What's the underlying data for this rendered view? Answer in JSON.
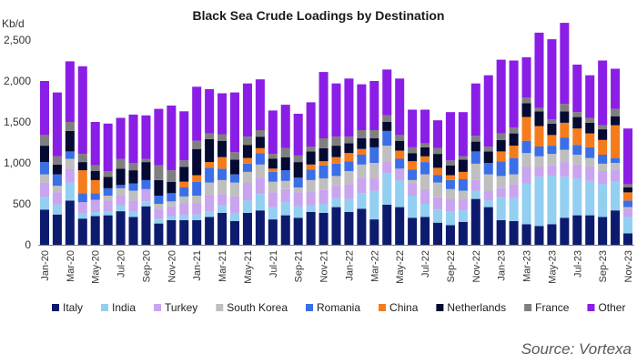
{
  "chart_data": {
    "type": "bar",
    "stacked": true,
    "title": "Black Sea Crude Loadings by Destination",
    "unit_label": "Kb/d",
    "ylim": [
      0,
      2500
    ],
    "yticks": [
      "0",
      "500",
      "1,000",
      "1,500",
      "2,000",
      "2,500"
    ],
    "ytick_values": [
      0,
      500,
      1000,
      1500,
      2000,
      2500
    ],
    "categories": [
      "Jan-20",
      "Feb-20",
      "Mar-20",
      "Apr-20",
      "May-20",
      "Jun-20",
      "Jul-20",
      "Aug-20",
      "Sep-20",
      "Oct-20",
      "Nov-20",
      "Dec-20",
      "Jan-21",
      "Feb-21",
      "Mar-21",
      "Apr-21",
      "May-21",
      "Jun-21",
      "Jul-21",
      "Aug-21",
      "Sep-21",
      "Oct-21",
      "Nov-21",
      "Dec-21",
      "Jan-22",
      "Feb-22",
      "Mar-22",
      "Apr-22",
      "May-22",
      "Jun-22",
      "Jul-22",
      "Aug-22",
      "Sep-22",
      "Oct-22",
      "Nov-22",
      "Dec-22",
      "Jan-23",
      "Feb-23",
      "Mar-23",
      "Apr-23",
      "May-23",
      "Jun-23",
      "Jul-23",
      "Aug-23",
      "Sep-23",
      "Oct-23",
      "Nov-23"
    ],
    "x_tick_labels": [
      "Jan-20",
      "Mar-20",
      "May-20",
      "Jul-20",
      "Sep-20",
      "Nov-20",
      "Jan-21",
      "Mar-21",
      "May-21",
      "Jul-21",
      "Sep-21",
      "Nov-21",
      "Jan-22",
      "Mar-22",
      "May-22",
      "Jul-22",
      "Sep-22",
      "Nov-22",
      "Jan-23",
      "Mar-23",
      "May-23",
      "Jul-23",
      "Sep-23",
      "Nov-23"
    ],
    "series": [
      {
        "name": "Italy",
        "color": "#0d1b6e",
        "values": [
          430,
          370,
          540,
          320,
          350,
          360,
          410,
          340,
          470,
          260,
          300,
          300,
          300,
          340,
          390,
          290,
          390,
          420,
          310,
          360,
          330,
          400,
          390,
          460,
          400,
          440,
          310,
          490,
          460,
          330,
          340,
          270,
          240,
          280,
          560,
          460,
          300,
          290,
          250,
          230,
          250,
          330,
          360,
          360,
          340,
          420,
          140
        ]
      },
      {
        "name": "India",
        "color": "#92cff0",
        "values": [
          150,
          120,
          220,
          60,
          50,
          50,
          70,
          70,
          60,
          60,
          50,
          60,
          70,
          70,
          90,
          100,
          150,
          200,
          150,
          160,
          140,
          80,
          110,
          110,
          160,
          190,
          350,
          380,
          330,
          270,
          160,
          160,
          170,
          140,
          100,
          80,
          280,
          280,
          500,
          600,
          600,
          500,
          450,
          420,
          400,
          350,
          200
        ]
      },
      {
        "name": "Turkey",
        "color": "#c9a4ef",
        "values": [
          180,
          150,
          170,
          140,
          150,
          130,
          120,
          130,
          150,
          120,
          120,
          150,
          140,
          200,
          140,
          200,
          220,
          200,
          180,
          160,
          170,
          170,
          170,
          150,
          180,
          190,
          150,
          150,
          140,
          150,
          180,
          150,
          150,
          140,
          130,
          120,
          110,
          170,
          200,
          120,
          120,
          180,
          170,
          170,
          160,
          150,
          100
        ]
      },
      {
        "name": "South Korea",
        "color": "#bfbfbf",
        "values": [
          100,
          80,
          120,
          0,
          0,
          60,
          90,
          120,
          0,
          60,
          60,
          80,
          90,
          150,
          170,
          170,
          130,
          160,
          130,
          100,
          60,
          140,
          140,
          120,
          160,
          160,
          190,
          190,
          0,
          40,
          180,
          180,
          120,
          100,
          200,
          200,
          150,
          120,
          170,
          130,
          140,
          150,
          120,
          110,
          90,
          80,
          20
        ]
      },
      {
        "name": "Romania",
        "color": "#3b6fe6",
        "values": [
          150,
          140,
          90,
          110,
          80,
          90,
          40,
          90,
          110,
          100,
          100,
          110,
          170,
          180,
          140,
          100,
          100,
          140,
          120,
          130,
          120,
          130,
          160,
          150,
          120,
          120,
          190,
          180,
          120,
          130,
          150,
          90,
          110,
          140,
          150,
          140,
          180,
          200,
          150,
          120,
          100,
          150,
          120,
          130,
          110,
          60,
          80
        ]
      },
      {
        "name": "China",
        "color": "#f57c1c",
        "values": [
          0,
          0,
          0,
          280,
          160,
          0,
          0,
          0,
          0,
          0,
          0,
          70,
          80,
          70,
          140,
          0,
          70,
          60,
          40,
          0,
          0,
          60,
          50,
          80,
          100,
          70,
          0,
          0,
          100,
          100,
          70,
          90,
          60,
          90,
          0,
          0,
          120,
          150,
          290,
          250,
          130,
          180,
          200,
          170,
          180,
          400,
          100
        ]
      },
      {
        "name": "Netherlands",
        "color": "#050a33",
        "values": [
          200,
          120,
          250,
          100,
          110,
          140,
          200,
          160,
          220,
          190,
          140,
          180,
          320,
          280,
          200,
          180,
          160,
          140,
          120,
          160,
          190,
          160,
          160,
          140,
          120,
          130,
          110,
          110,
          120,
          100,
          110,
          170,
          120,
          150,
          120,
          140,
          140,
          150,
          170,
          180,
          140,
          140,
          140,
          130,
          130,
          110,
          60
        ]
      },
      {
        "name": "France",
        "color": "#7f7f7f",
        "values": [
          130,
          100,
          110,
          100,
          70,
          70,
          120,
          90,
          40,
          180,
          140,
          80,
          100,
          70,
          80,
          90,
          100,
          80,
          60,
          110,
          80,
          60,
          120,
          110,
          80,
          100,
          100,
          80,
          70,
          70,
          50,
          70,
          60,
          40,
          70,
          60,
          80,
          70,
          70,
          40,
          50,
          90,
          60,
          60,
          50,
          90,
          40
        ]
      },
      {
        "name": "Other",
        "color": "#8b1ee6",
        "values": [
          660,
          780,
          740,
          1070,
          530,
          580,
          500,
          590,
          530,
          690,
          790,
          600,
          660,
          540,
          500,
          730,
          650,
          620,
          530,
          530,
          510,
          540,
          810,
          650,
          710,
          560,
          600,
          560,
          690,
          460,
          410,
          340,
          590,
          540,
          640,
          870,
          900,
          820,
          490,
          920,
          980,
          990,
          580,
          520,
          790,
          490,
          680
        ]
      }
    ],
    "legend_position": "bottom",
    "source": "Source: Vortexa",
    "grid": false
  }
}
